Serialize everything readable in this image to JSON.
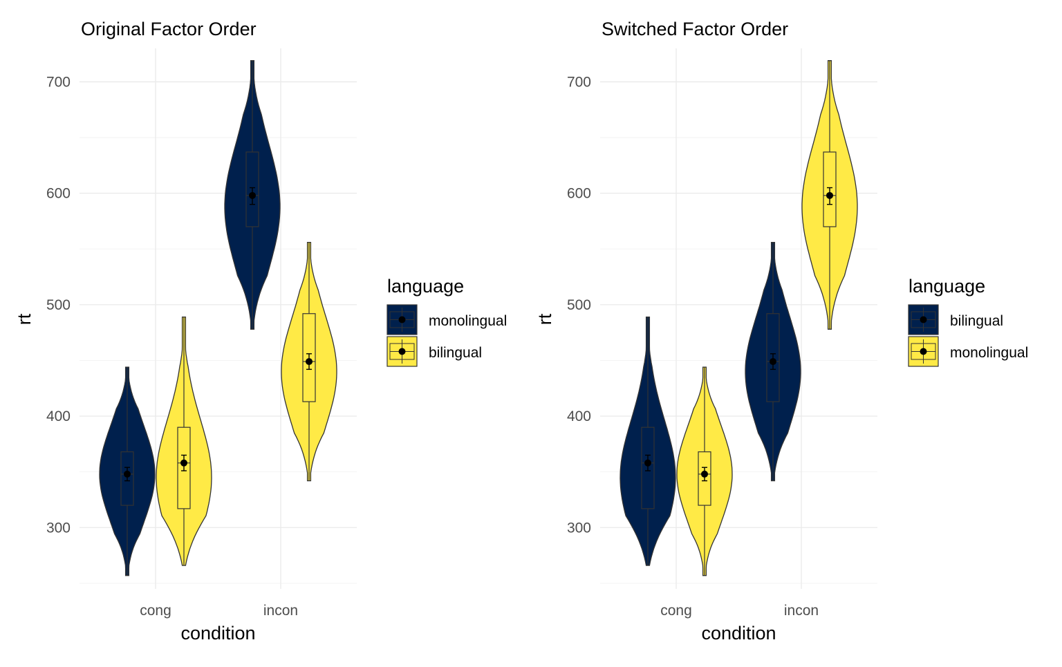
{
  "chart_data": [
    {
      "type": "violin",
      "title": "Original Factor Order",
      "xlabel": "condition",
      "ylabel": "rt",
      "categories": [
        "cong",
        "incon"
      ],
      "yticks": [
        300,
        400,
        500,
        600,
        700
      ],
      "ylim": [
        245,
        730
      ],
      "grid": true,
      "legend_title": "language",
      "legend_position": "right",
      "series": [
        {
          "name": "monolingual",
          "color": "#00204d",
          "groups": [
            {
              "category": "cong",
              "min": 257,
              "max": 444,
              "q1": 320,
              "median": 348,
              "q3": 368,
              "mean": 348,
              "se_low": 342,
              "se_high": 354,
              "mode": 348
            },
            {
              "category": "incon",
              "min": 478,
              "max": 719,
              "q1": 570,
              "median": 598,
              "q3": 637,
              "mean": 598,
              "se_low": 590,
              "se_high": 605,
              "mode": 588
            }
          ]
        },
        {
          "name": "bilingual",
          "color": "#ffea46",
          "groups": [
            {
              "category": "cong",
              "min": 266,
              "max": 489,
              "q1": 317,
              "median": 358,
              "q3": 390,
              "mean": 358,
              "se_low": 351,
              "se_high": 365,
              "mode": 345
            },
            {
              "category": "incon",
              "min": 342,
              "max": 556,
              "q1": 413,
              "median": 449,
              "q3": 492,
              "mean": 449,
              "se_low": 442,
              "se_high": 456,
              "mode": 440
            }
          ]
        }
      ]
    },
    {
      "type": "violin",
      "title": "Switched Factor Order",
      "xlabel": "condition",
      "ylabel": "rt",
      "categories": [
        "cong",
        "incon"
      ],
      "yticks": [
        300,
        400,
        500,
        600,
        700
      ],
      "ylim": [
        245,
        730
      ],
      "grid": true,
      "legend_title": "language",
      "legend_position": "right",
      "series": [
        {
          "name": "bilingual",
          "color": "#00204d",
          "groups": [
            {
              "category": "cong",
              "min": 266,
              "max": 489,
              "q1": 317,
              "median": 358,
              "q3": 390,
              "mean": 358,
              "se_low": 351,
              "se_high": 365,
              "mode": 345
            },
            {
              "category": "incon",
              "min": 342,
              "max": 556,
              "q1": 413,
              "median": 449,
              "q3": 492,
              "mean": 449,
              "se_low": 442,
              "se_high": 456,
              "mode": 440
            }
          ]
        },
        {
          "name": "monolingual",
          "color": "#ffea46",
          "groups": [
            {
              "category": "cong",
              "min": 257,
              "max": 444,
              "q1": 320,
              "median": 348,
              "q3": 368,
              "mean": 348,
              "se_low": 342,
              "se_high": 354,
              "mode": 348
            },
            {
              "category": "incon",
              "min": 478,
              "max": 719,
              "q1": 570,
              "median": 598,
              "q3": 637,
              "mean": 598,
              "se_low": 590,
              "se_high": 605,
              "mode": 588
            }
          ]
        }
      ]
    }
  ]
}
